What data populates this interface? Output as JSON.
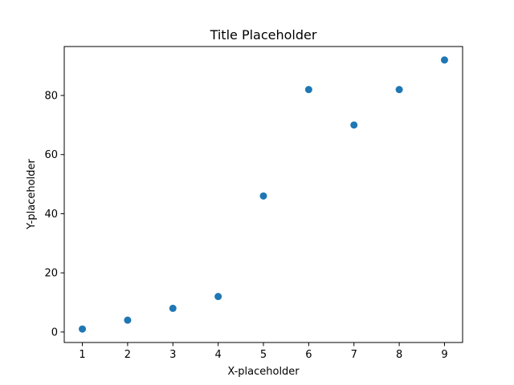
{
  "chart_data": {
    "type": "scatter",
    "title": "Title Placeholder",
    "xlabel": "X-placeholder",
    "ylabel": "Y-placeholder",
    "x": [
      1,
      2,
      3,
      4,
      5,
      6,
      7,
      8,
      9
    ],
    "y": [
      1,
      4,
      8,
      12,
      46,
      82,
      70,
      82,
      92
    ],
    "xlim": [
      0.6,
      9.4
    ],
    "ylim": [
      -3.55,
      96.55
    ],
    "xticks": [
      1,
      2,
      3,
      4,
      5,
      6,
      7,
      8,
      9
    ],
    "xtick_labels": [
      "1",
      "2",
      "3",
      "4",
      "5",
      "6",
      "7",
      "8",
      "9"
    ],
    "yticks": [
      0,
      20,
      40,
      60,
      80
    ],
    "ytick_labels": [
      "0",
      "20",
      "40",
      "60",
      "80"
    ],
    "marker_color": "#1f77b4",
    "grid": false,
    "legend": "none"
  }
}
